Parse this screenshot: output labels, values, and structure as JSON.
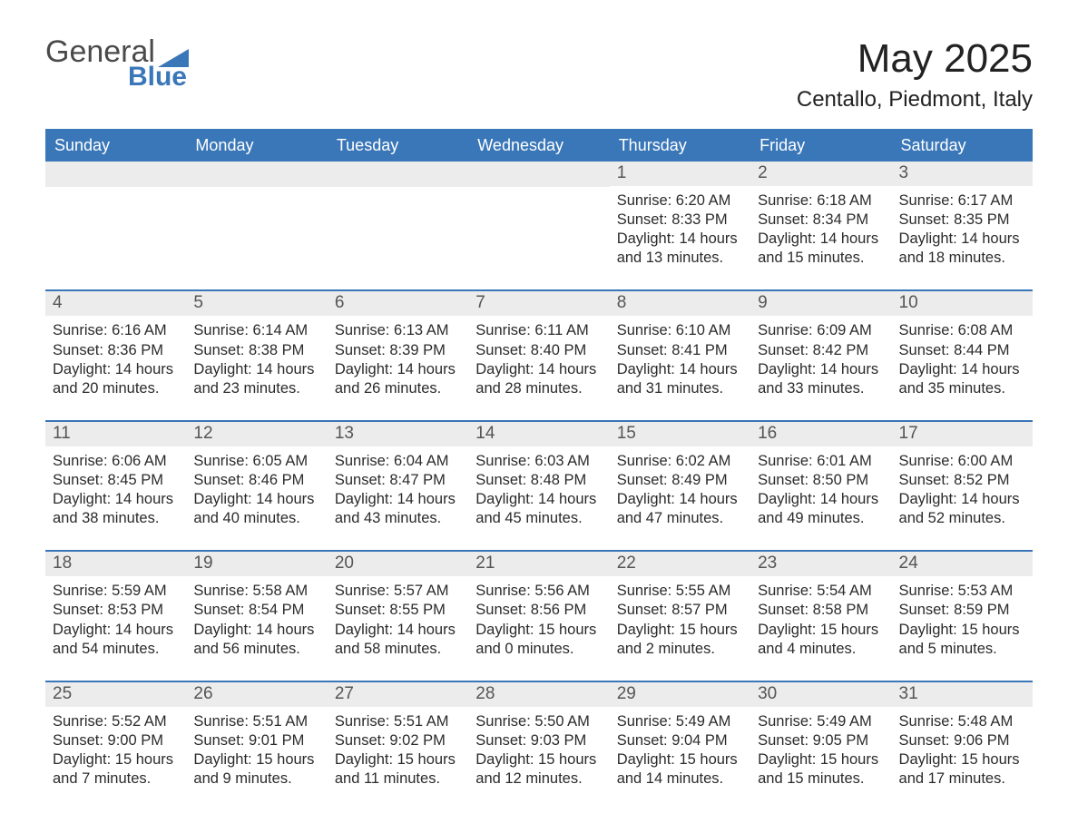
{
  "logo": {
    "word1": "General",
    "word2": "Blue",
    "word1_color": "#4a4a4a",
    "word2_color": "#3a77b8",
    "triangle_color": "#3a77b8"
  },
  "title": "May 2025",
  "subtitle": "Centallo, Piedmont, Italy",
  "header_bg": "#3a77b8",
  "header_text_color": "#ffffff",
  "week_border_color": "#3a77b8",
  "daynum_bg": "#ececec",
  "daynum_color": "#555555",
  "background_color": "#ffffff",
  "body_text_color": "#2b2b2b",
  "day_headers": [
    "Sunday",
    "Monday",
    "Tuesday",
    "Wednesday",
    "Thursday",
    "Friday",
    "Saturday"
  ],
  "weeks": [
    [
      {
        "day": "",
        "sunrise": "",
        "sunset": "",
        "daylight": ""
      },
      {
        "day": "",
        "sunrise": "",
        "sunset": "",
        "daylight": ""
      },
      {
        "day": "",
        "sunrise": "",
        "sunset": "",
        "daylight": ""
      },
      {
        "day": "",
        "sunrise": "",
        "sunset": "",
        "daylight": ""
      },
      {
        "day": "1",
        "sunrise": "Sunrise: 6:20 AM",
        "sunset": "Sunset: 8:33 PM",
        "daylight": "Daylight: 14 hours and 13 minutes."
      },
      {
        "day": "2",
        "sunrise": "Sunrise: 6:18 AM",
        "sunset": "Sunset: 8:34 PM",
        "daylight": "Daylight: 14 hours and 15 minutes."
      },
      {
        "day": "3",
        "sunrise": "Sunrise: 6:17 AM",
        "sunset": "Sunset: 8:35 PM",
        "daylight": "Daylight: 14 hours and 18 minutes."
      }
    ],
    [
      {
        "day": "4",
        "sunrise": "Sunrise: 6:16 AM",
        "sunset": "Sunset: 8:36 PM",
        "daylight": "Daylight: 14 hours and 20 minutes."
      },
      {
        "day": "5",
        "sunrise": "Sunrise: 6:14 AM",
        "sunset": "Sunset: 8:38 PM",
        "daylight": "Daylight: 14 hours and 23 minutes."
      },
      {
        "day": "6",
        "sunrise": "Sunrise: 6:13 AM",
        "sunset": "Sunset: 8:39 PM",
        "daylight": "Daylight: 14 hours and 26 minutes."
      },
      {
        "day": "7",
        "sunrise": "Sunrise: 6:11 AM",
        "sunset": "Sunset: 8:40 PM",
        "daylight": "Daylight: 14 hours and 28 minutes."
      },
      {
        "day": "8",
        "sunrise": "Sunrise: 6:10 AM",
        "sunset": "Sunset: 8:41 PM",
        "daylight": "Daylight: 14 hours and 31 minutes."
      },
      {
        "day": "9",
        "sunrise": "Sunrise: 6:09 AM",
        "sunset": "Sunset: 8:42 PM",
        "daylight": "Daylight: 14 hours and 33 minutes."
      },
      {
        "day": "10",
        "sunrise": "Sunrise: 6:08 AM",
        "sunset": "Sunset: 8:44 PM",
        "daylight": "Daylight: 14 hours and 35 minutes."
      }
    ],
    [
      {
        "day": "11",
        "sunrise": "Sunrise: 6:06 AM",
        "sunset": "Sunset: 8:45 PM",
        "daylight": "Daylight: 14 hours and 38 minutes."
      },
      {
        "day": "12",
        "sunrise": "Sunrise: 6:05 AM",
        "sunset": "Sunset: 8:46 PM",
        "daylight": "Daylight: 14 hours and 40 minutes."
      },
      {
        "day": "13",
        "sunrise": "Sunrise: 6:04 AM",
        "sunset": "Sunset: 8:47 PM",
        "daylight": "Daylight: 14 hours and 43 minutes."
      },
      {
        "day": "14",
        "sunrise": "Sunrise: 6:03 AM",
        "sunset": "Sunset: 8:48 PM",
        "daylight": "Daylight: 14 hours and 45 minutes."
      },
      {
        "day": "15",
        "sunrise": "Sunrise: 6:02 AM",
        "sunset": "Sunset: 8:49 PM",
        "daylight": "Daylight: 14 hours and 47 minutes."
      },
      {
        "day": "16",
        "sunrise": "Sunrise: 6:01 AM",
        "sunset": "Sunset: 8:50 PM",
        "daylight": "Daylight: 14 hours and 49 minutes."
      },
      {
        "day": "17",
        "sunrise": "Sunrise: 6:00 AM",
        "sunset": "Sunset: 8:52 PM",
        "daylight": "Daylight: 14 hours and 52 minutes."
      }
    ],
    [
      {
        "day": "18",
        "sunrise": "Sunrise: 5:59 AM",
        "sunset": "Sunset: 8:53 PM",
        "daylight": "Daylight: 14 hours and 54 minutes."
      },
      {
        "day": "19",
        "sunrise": "Sunrise: 5:58 AM",
        "sunset": "Sunset: 8:54 PM",
        "daylight": "Daylight: 14 hours and 56 minutes."
      },
      {
        "day": "20",
        "sunrise": "Sunrise: 5:57 AM",
        "sunset": "Sunset: 8:55 PM",
        "daylight": "Daylight: 14 hours and 58 minutes."
      },
      {
        "day": "21",
        "sunrise": "Sunrise: 5:56 AM",
        "sunset": "Sunset: 8:56 PM",
        "daylight": "Daylight: 15 hours and 0 minutes."
      },
      {
        "day": "22",
        "sunrise": "Sunrise: 5:55 AM",
        "sunset": "Sunset: 8:57 PM",
        "daylight": "Daylight: 15 hours and 2 minutes."
      },
      {
        "day": "23",
        "sunrise": "Sunrise: 5:54 AM",
        "sunset": "Sunset: 8:58 PM",
        "daylight": "Daylight: 15 hours and 4 minutes."
      },
      {
        "day": "24",
        "sunrise": "Sunrise: 5:53 AM",
        "sunset": "Sunset: 8:59 PM",
        "daylight": "Daylight: 15 hours and 5 minutes."
      }
    ],
    [
      {
        "day": "25",
        "sunrise": "Sunrise: 5:52 AM",
        "sunset": "Sunset: 9:00 PM",
        "daylight": "Daylight: 15 hours and 7 minutes."
      },
      {
        "day": "26",
        "sunrise": "Sunrise: 5:51 AM",
        "sunset": "Sunset: 9:01 PM",
        "daylight": "Daylight: 15 hours and 9 minutes."
      },
      {
        "day": "27",
        "sunrise": "Sunrise: 5:51 AM",
        "sunset": "Sunset: 9:02 PM",
        "daylight": "Daylight: 15 hours and 11 minutes."
      },
      {
        "day": "28",
        "sunrise": "Sunrise: 5:50 AM",
        "sunset": "Sunset: 9:03 PM",
        "daylight": "Daylight: 15 hours and 12 minutes."
      },
      {
        "day": "29",
        "sunrise": "Sunrise: 5:49 AM",
        "sunset": "Sunset: 9:04 PM",
        "daylight": "Daylight: 15 hours and 14 minutes."
      },
      {
        "day": "30",
        "sunrise": "Sunrise: 5:49 AM",
        "sunset": "Sunset: 9:05 PM",
        "daylight": "Daylight: 15 hours and 15 minutes."
      },
      {
        "day": "31",
        "sunrise": "Sunrise: 5:48 AM",
        "sunset": "Sunset: 9:06 PM",
        "daylight": "Daylight: 15 hours and 17 minutes."
      }
    ]
  ]
}
